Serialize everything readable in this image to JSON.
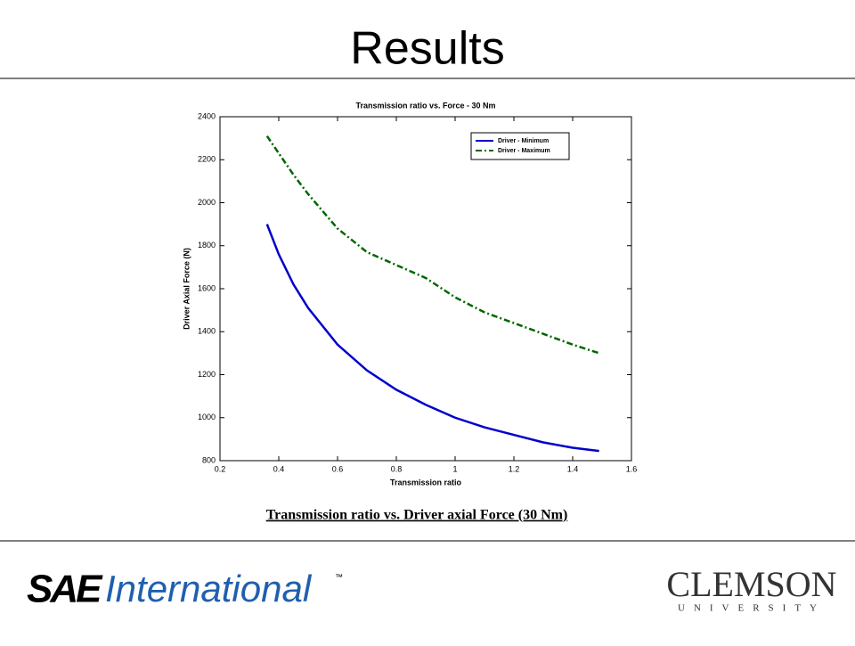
{
  "slide": {
    "title": "Results",
    "caption": "Transmission ratio vs. Driver axial Force (30 Nm)"
  },
  "logos": {
    "sae": "SAE",
    "international": "International",
    "tm": "™",
    "clemson": "CLEMSON",
    "university": "UNIVERSITY"
  },
  "chart_data": {
    "type": "line",
    "title": "Transmission ratio vs. Force - 30 Nm",
    "x_label": "Transmission ratio",
    "y_label": "Driver Axial Force (N)",
    "x": [
      0.36,
      0.4,
      0.45,
      0.5,
      0.6,
      0.7,
      0.8,
      0.9,
      1.0,
      1.1,
      1.2,
      1.3,
      1.4,
      1.49
    ],
    "series": [
      {
        "name": "Driver - Minimum",
        "color": "#0000cc",
        "dash": "solid",
        "values": [
          1900,
          1760,
          1620,
          1510,
          1340,
          1220,
          1130,
          1060,
          1000,
          955,
          920,
          885,
          860,
          845
        ]
      },
      {
        "name": "Driver - Maximum",
        "color": "#006600",
        "dash": "dashdot",
        "values": [
          2310,
          2230,
          2130,
          2040,
          1880,
          1770,
          1710,
          1650,
          1560,
          1490,
          1440,
          1390,
          1340,
          1300
        ]
      }
    ],
    "xlim": [
      0.2,
      1.6
    ],
    "xticks": [
      0.2,
      0.4,
      0.6,
      0.8,
      1,
      1.2,
      1.4,
      1.6
    ],
    "ylim": [
      800,
      2400
    ],
    "yticks": [
      800,
      1000,
      1200,
      1400,
      1600,
      1800,
      2000,
      2200,
      2400
    ],
    "grid": false,
    "legend": "upper right"
  }
}
